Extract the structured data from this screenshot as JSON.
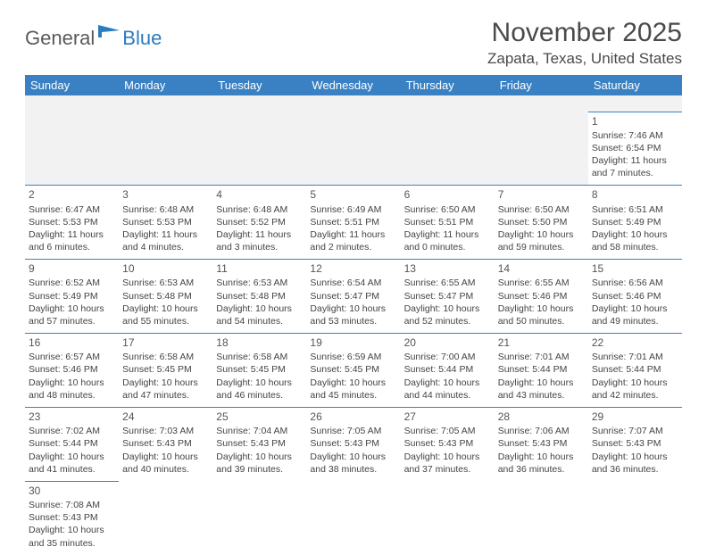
{
  "logo": {
    "part1": "General",
    "part2": "Blue"
  },
  "title": "November 2025",
  "location": "Zapata, Texas, United States",
  "colors": {
    "header_bg": "#3a81c4",
    "header_text": "#ffffff",
    "cell_border": "#3a81c4",
    "logo_gray": "#5a5a5a",
    "logo_blue": "#2b7bbf",
    "body_text": "#444444",
    "blank_row_bg": "#f2f2f2"
  },
  "weekdays": [
    "Sunday",
    "Monday",
    "Tuesday",
    "Wednesday",
    "Thursday",
    "Friday",
    "Saturday"
  ],
  "weeks": [
    [
      null,
      null,
      null,
      null,
      null,
      null,
      {
        "n": "1",
        "sr": "7:46 AM",
        "ss": "6:54 PM",
        "dl": "11 hours and 7 minutes."
      }
    ],
    [
      {
        "n": "2",
        "sr": "6:47 AM",
        "ss": "5:53 PM",
        "dl": "11 hours and 6 minutes."
      },
      {
        "n": "3",
        "sr": "6:48 AM",
        "ss": "5:53 PM",
        "dl": "11 hours and 4 minutes."
      },
      {
        "n": "4",
        "sr": "6:48 AM",
        "ss": "5:52 PM",
        "dl": "11 hours and 3 minutes."
      },
      {
        "n": "5",
        "sr": "6:49 AM",
        "ss": "5:51 PM",
        "dl": "11 hours and 2 minutes."
      },
      {
        "n": "6",
        "sr": "6:50 AM",
        "ss": "5:51 PM",
        "dl": "11 hours and 0 minutes."
      },
      {
        "n": "7",
        "sr": "6:50 AM",
        "ss": "5:50 PM",
        "dl": "10 hours and 59 minutes."
      },
      {
        "n": "8",
        "sr": "6:51 AM",
        "ss": "5:49 PM",
        "dl": "10 hours and 58 minutes."
      }
    ],
    [
      {
        "n": "9",
        "sr": "6:52 AM",
        "ss": "5:49 PM",
        "dl": "10 hours and 57 minutes."
      },
      {
        "n": "10",
        "sr": "6:53 AM",
        "ss": "5:48 PM",
        "dl": "10 hours and 55 minutes."
      },
      {
        "n": "11",
        "sr": "6:53 AM",
        "ss": "5:48 PM",
        "dl": "10 hours and 54 minutes."
      },
      {
        "n": "12",
        "sr": "6:54 AM",
        "ss": "5:47 PM",
        "dl": "10 hours and 53 minutes."
      },
      {
        "n": "13",
        "sr": "6:55 AM",
        "ss": "5:47 PM",
        "dl": "10 hours and 52 minutes."
      },
      {
        "n": "14",
        "sr": "6:55 AM",
        "ss": "5:46 PM",
        "dl": "10 hours and 50 minutes."
      },
      {
        "n": "15",
        "sr": "6:56 AM",
        "ss": "5:46 PM",
        "dl": "10 hours and 49 minutes."
      }
    ],
    [
      {
        "n": "16",
        "sr": "6:57 AM",
        "ss": "5:46 PM",
        "dl": "10 hours and 48 minutes."
      },
      {
        "n": "17",
        "sr": "6:58 AM",
        "ss": "5:45 PM",
        "dl": "10 hours and 47 minutes."
      },
      {
        "n": "18",
        "sr": "6:58 AM",
        "ss": "5:45 PM",
        "dl": "10 hours and 46 minutes."
      },
      {
        "n": "19",
        "sr": "6:59 AM",
        "ss": "5:45 PM",
        "dl": "10 hours and 45 minutes."
      },
      {
        "n": "20",
        "sr": "7:00 AM",
        "ss": "5:44 PM",
        "dl": "10 hours and 44 minutes."
      },
      {
        "n": "21",
        "sr": "7:01 AM",
        "ss": "5:44 PM",
        "dl": "10 hours and 43 minutes."
      },
      {
        "n": "22",
        "sr": "7:01 AM",
        "ss": "5:44 PM",
        "dl": "10 hours and 42 minutes."
      }
    ],
    [
      {
        "n": "23",
        "sr": "7:02 AM",
        "ss": "5:44 PM",
        "dl": "10 hours and 41 minutes."
      },
      {
        "n": "24",
        "sr": "7:03 AM",
        "ss": "5:43 PM",
        "dl": "10 hours and 40 minutes."
      },
      {
        "n": "25",
        "sr": "7:04 AM",
        "ss": "5:43 PM",
        "dl": "10 hours and 39 minutes."
      },
      {
        "n": "26",
        "sr": "7:05 AM",
        "ss": "5:43 PM",
        "dl": "10 hours and 38 minutes."
      },
      {
        "n": "27",
        "sr": "7:05 AM",
        "ss": "5:43 PM",
        "dl": "10 hours and 37 minutes."
      },
      {
        "n": "28",
        "sr": "7:06 AM",
        "ss": "5:43 PM",
        "dl": "10 hours and 36 minutes."
      },
      {
        "n": "29",
        "sr": "7:07 AM",
        "ss": "5:43 PM",
        "dl": "10 hours and 36 minutes."
      }
    ],
    [
      {
        "n": "30",
        "sr": "7:08 AM",
        "ss": "5:43 PM",
        "dl": "10 hours and 35 minutes."
      },
      null,
      null,
      null,
      null,
      null,
      null
    ]
  ],
  "labels": {
    "sunrise": "Sunrise: ",
    "sunset": "Sunset: ",
    "daylight": "Daylight: "
  }
}
